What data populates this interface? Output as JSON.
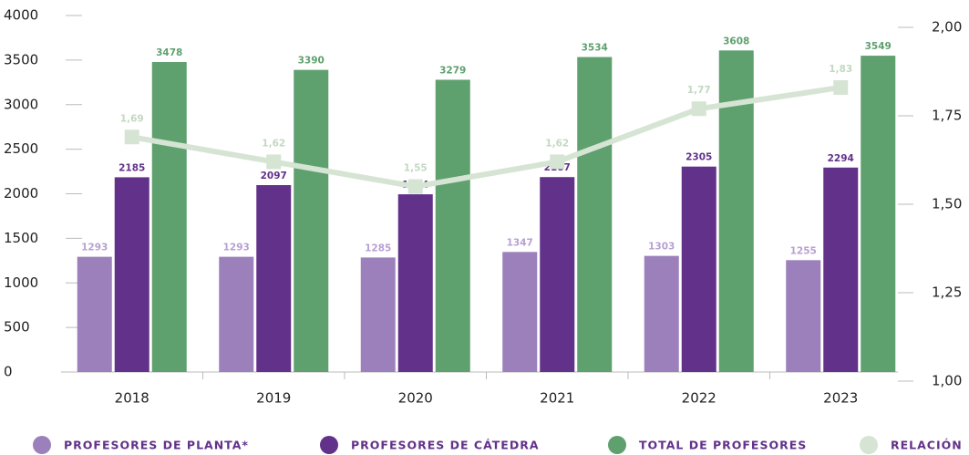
{
  "chart_data": {
    "type": "bar",
    "categories": [
      "2018",
      "2019",
      "2020",
      "2021",
      "2022",
      "2023"
    ],
    "series": [
      {
        "name": "PROFESORES DE PLANTA*",
        "color": "#9b80bc",
        "label_color": "#b7a0d2",
        "values": [
          1293,
          1293,
          1285,
          1347,
          1303,
          1255
        ]
      },
      {
        "name": "PROFESORES DE CÁTEDRA",
        "color": "#62318a",
        "label_color": "#62318a",
        "values": [
          2185,
          2097,
          1994,
          2187,
          2305,
          2294
        ]
      },
      {
        "name": "TOTAL DE PROFESORES",
        "color": "#5fa06f",
        "label_color": "#5fa06f",
        "values": [
          3478,
          3390,
          3279,
          3534,
          3608,
          3549
        ]
      },
      {
        "name": "RELACIÓN",
        "type": "line",
        "axis": "y2",
        "color": "#d5e4d3",
        "label_color": "#c2d8c1",
        "values": [
          1.69,
          1.62,
          1.55,
          1.62,
          1.77,
          1.83
        ],
        "value_labels": [
          "1,69",
          "1,62",
          "1,55",
          "1,62",
          "1,77",
          "1,83"
        ]
      }
    ],
    "ylim": [
      0,
      4000
    ],
    "yticks": [
      0,
      500,
      1000,
      1500,
      2000,
      2500,
      3000,
      3500,
      4000
    ],
    "y2lim": [
      1.0,
      2.0
    ],
    "y2ticks": [
      {
        "value": 1.0,
        "label": "1,00"
      },
      {
        "value": 1.25,
        "label": "1,25"
      },
      {
        "value": 1.5,
        "label": "1,50"
      },
      {
        "value": 1.75,
        "label": "1,75"
      },
      {
        "value": 2.0,
        "label": "2,00"
      }
    ],
    "legend": "bottom"
  }
}
